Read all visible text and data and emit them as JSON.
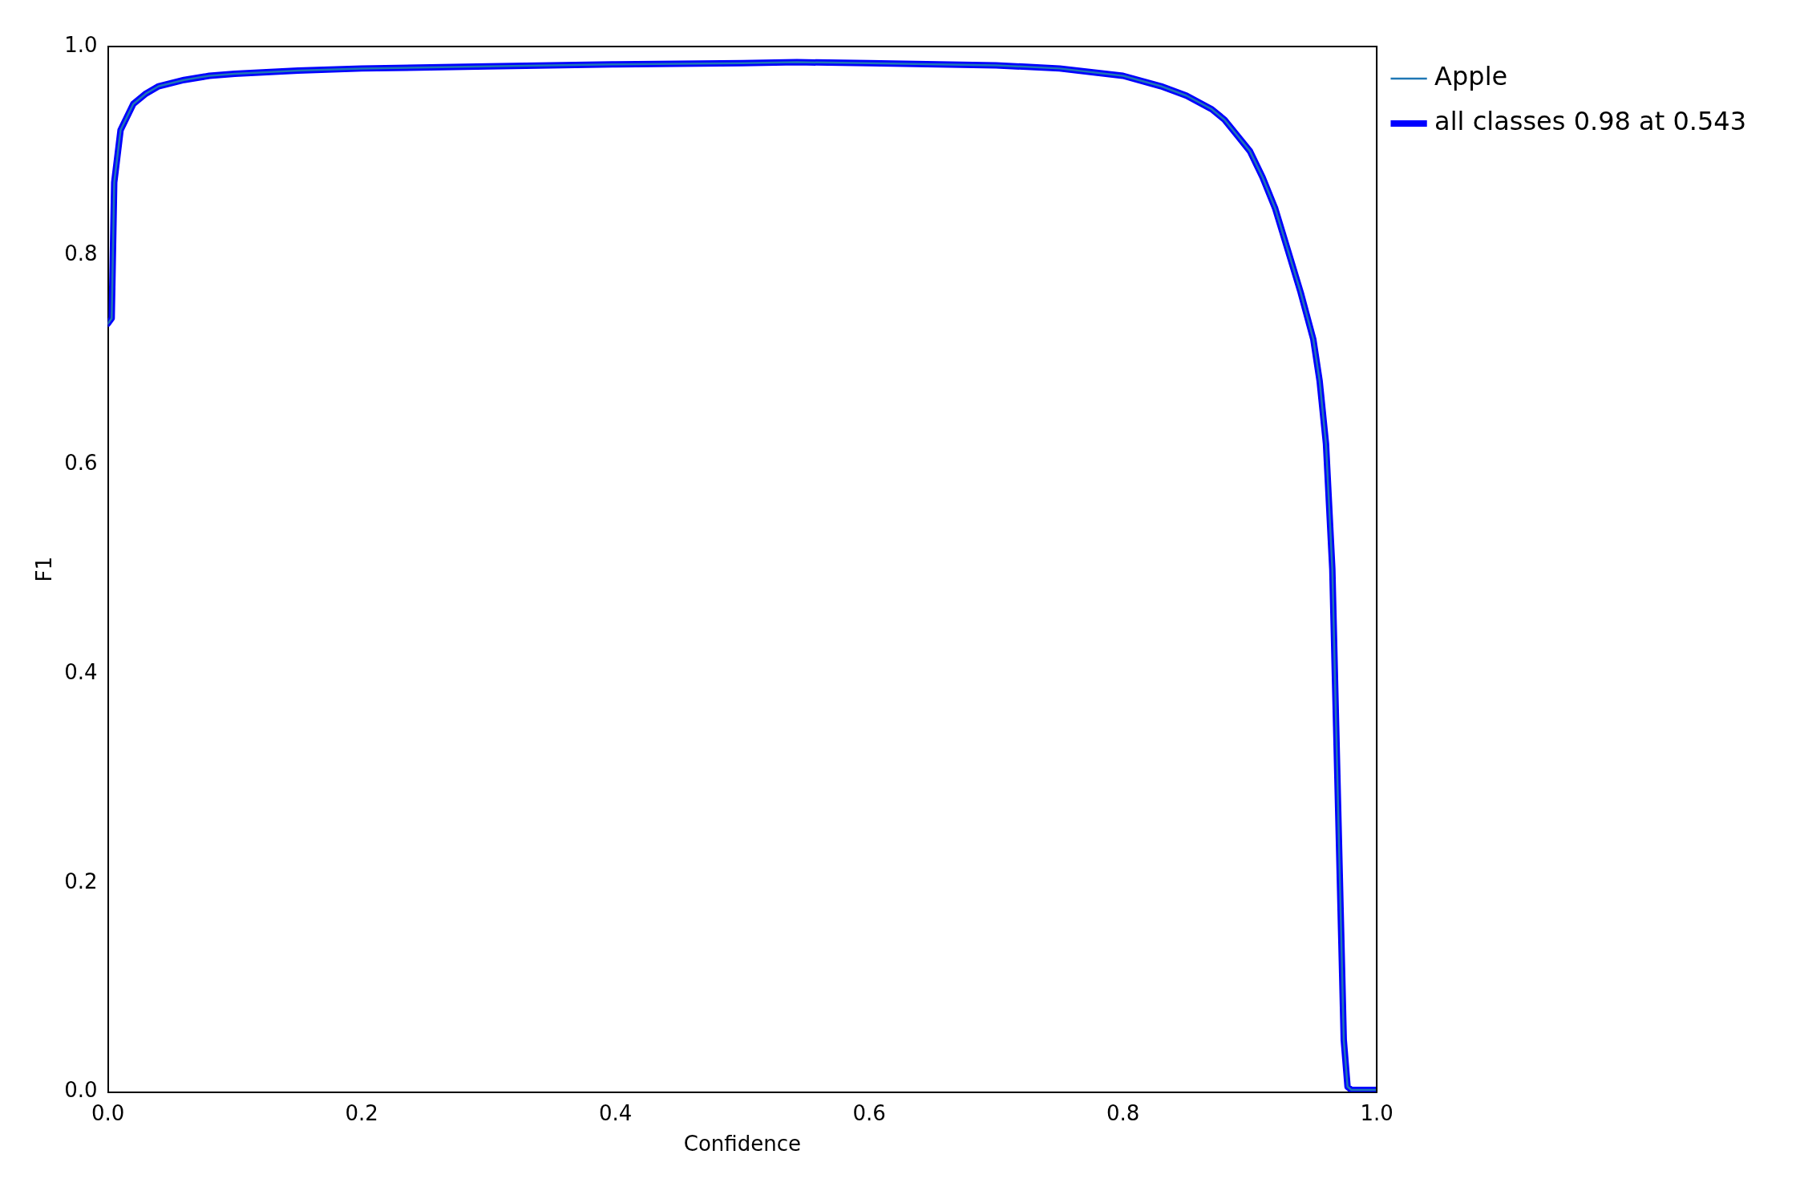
{
  "chart_data": {
    "type": "line",
    "xlabel": "Confidence",
    "ylabel": "F1",
    "xlim": [
      0,
      1
    ],
    "ylim": [
      0,
      1
    ],
    "xticks": [
      {
        "value": 0,
        "label": "0.0"
      },
      0.2,
      0.4,
      0.6,
      0.8,
      {
        "value": 1,
        "label": "1.0"
      }
    ],
    "yticks": [
      {
        "value": 0,
        "label": "0.0"
      },
      0.2,
      0.4,
      0.6,
      0.8,
      {
        "value": 1,
        "label": "1.0"
      }
    ],
    "grid": false,
    "legend": "top right",
    "marker": "none",
    "line_style": "solid",
    "x": [
      0,
      0.003,
      0.005,
      0.01,
      0.02,
      0.03,
      0.04,
      0.06,
      0.08,
      0.1,
      0.15,
      0.2,
      0.3,
      0.4,
      0.5,
      0.543,
      0.6,
      0.7,
      0.75,
      0.8,
      0.83,
      0.85,
      0.87,
      0.88,
      0.89,
      0.9,
      0.91,
      0.92,
      0.93,
      0.94,
      0.95,
      0.955,
      0.96,
      0.965,
      0.968,
      0.972,
      0.974,
      0.977,
      0.98,
      1
    ],
    "series": [
      {
        "name": "all classes 0.98 at 0.543",
        "color": "#0000ff",
        "values": [
          0.735,
          0.74,
          0.87,
          0.92,
          0.945,
          0.955,
          0.962,
          0.968,
          0.972,
          0.974,
          0.977,
          0.979,
          0.981,
          0.983,
          0.984,
          0.985,
          0.984,
          0.982,
          0.979,
          0.972,
          0.962,
          0.953,
          0.94,
          0.93,
          0.915,
          0.9,
          0.875,
          0.845,
          0.805,
          0.765,
          0.72,
          0.68,
          0.62,
          0.5,
          0.35,
          0.15,
          0.05,
          0.005,
          0.002,
          0.002
        ]
      },
      {
        "name": "Apple",
        "color": "#1f77b4",
        "values": [
          0.735,
          0.74,
          0.87,
          0.92,
          0.945,
          0.955,
          0.962,
          0.968,
          0.972,
          0.974,
          0.977,
          0.979,
          0.981,
          0.983,
          0.984,
          0.985,
          0.984,
          0.982,
          0.979,
          0.972,
          0.962,
          0.953,
          0.94,
          0.93,
          0.915,
          0.9,
          0.875,
          0.845,
          0.805,
          0.765,
          0.72,
          0.68,
          0.62,
          0.5,
          0.35,
          0.15,
          0.05,
          0.005,
          0.002,
          0.002
        ]
      }
    ]
  }
}
